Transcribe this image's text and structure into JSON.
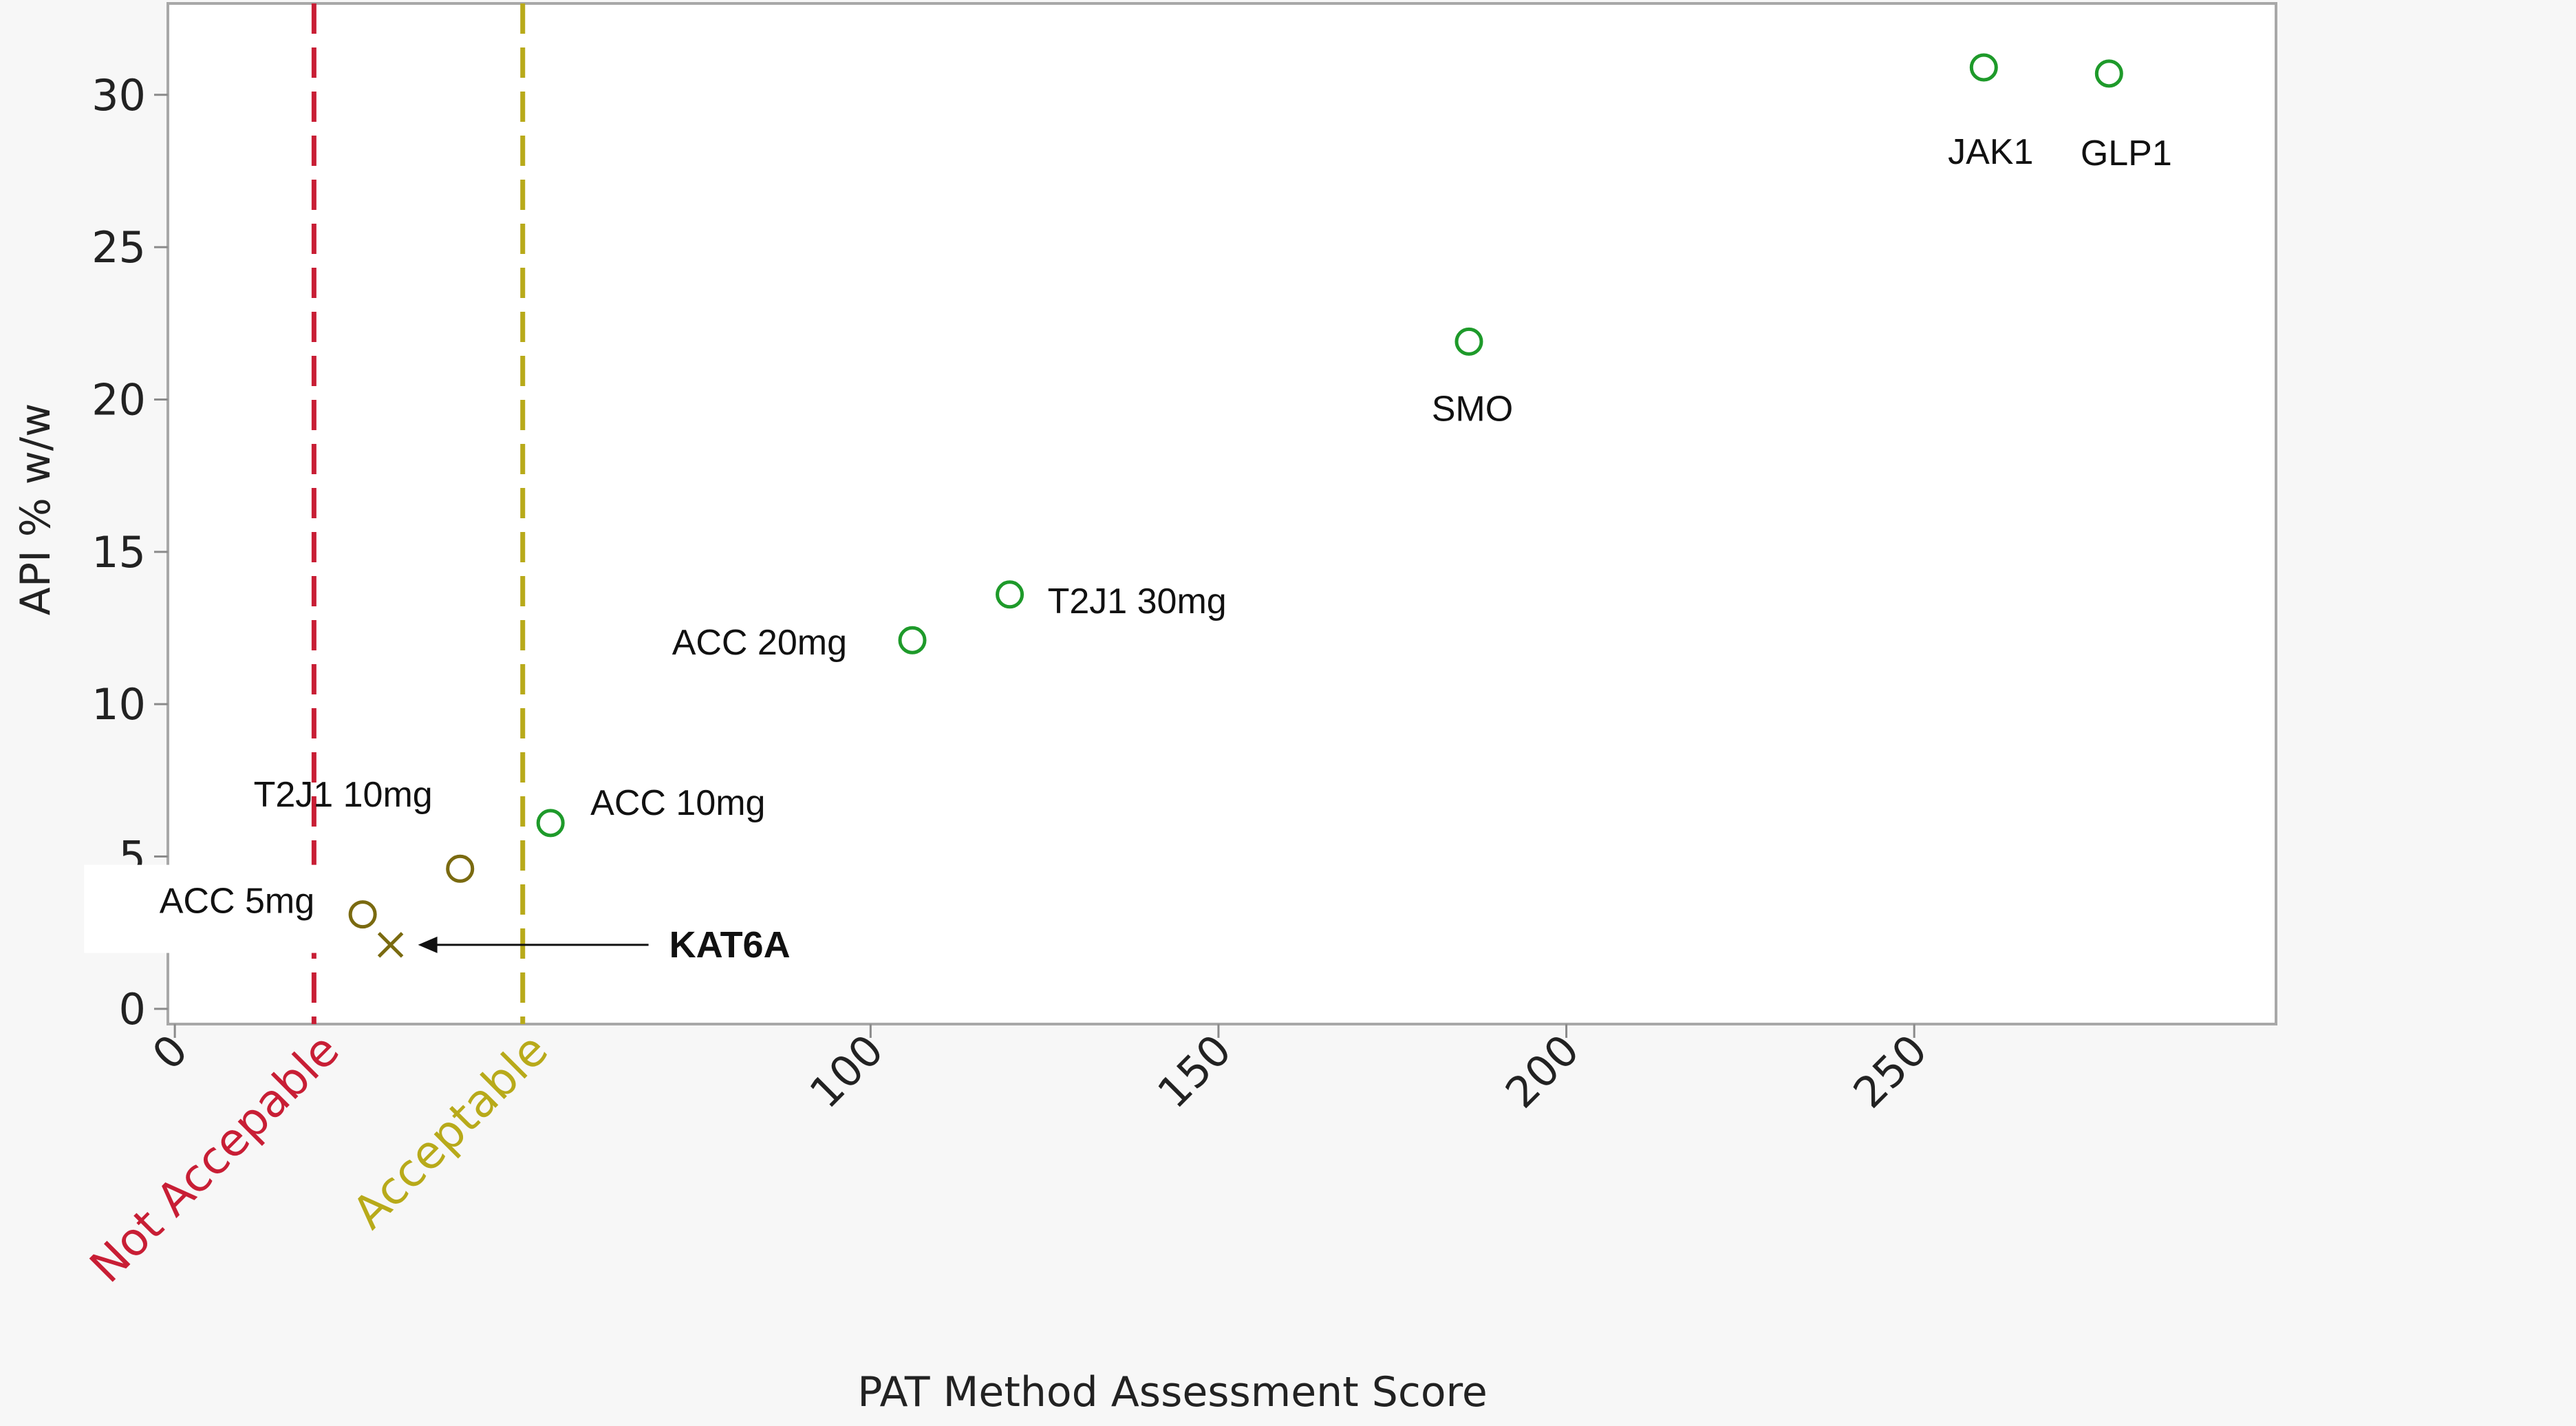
{
  "chart_data": {
    "type": "scatter",
    "title": "",
    "xlabel": "PAT Method Assessment Score",
    "ylabel": "API % w/w",
    "xlim": [
      -1,
      302
    ],
    "ylim": [
      -0.5,
      33
    ],
    "x_ticks": [
      "0",
      "100",
      "150",
      "200",
      "250"
    ],
    "x_tick_values": [
      0,
      100,
      150,
      200,
      250
    ],
    "y_ticks": [
      "0",
      "5",
      "10",
      "15",
      "20",
      "25",
      "30"
    ],
    "y_tick_values": [
      0,
      5,
      10,
      15,
      20,
      25,
      30
    ],
    "points": [
      {
        "label": "ACC 5mg",
        "x": 27,
        "y": 3.1,
        "marker": "circle",
        "color": "#7a6a10"
      },
      {
        "label": "T2J1 10mg",
        "x": 41,
        "y": 4.6,
        "marker": "circle",
        "color": "#7a6a10"
      },
      {
        "label": "ACC 10mg",
        "x": 54,
        "y": 6.1,
        "marker": "circle",
        "color": "#1e9a2a"
      },
      {
        "label": "ACC 20mg",
        "x": 106,
        "y": 12.1,
        "marker": "circle",
        "color": "#1e9a2a"
      },
      {
        "label": "T2J1 30mg",
        "x": 120,
        "y": 13.6,
        "marker": "circle",
        "color": "#1e9a2a"
      },
      {
        "label": "SMO",
        "x": 186,
        "y": 21.9,
        "marker": "circle",
        "color": "#1e9a2a"
      },
      {
        "label": "JAK1",
        "x": 260,
        "y": 30.9,
        "marker": "circle",
        "color": "#1e9a2a"
      },
      {
        "label": "GLP1",
        "x": 278,
        "y": 30.7,
        "marker": "circle",
        "color": "#1e9a2a"
      },
      {
        "label": "KAT6A",
        "x": 31,
        "y": 2.1,
        "marker": "x",
        "color": "#7a6a10"
      }
    ],
    "reference_lines": [
      {
        "x": 20,
        "label": "Not Accepable",
        "color": "#c81e35"
      },
      {
        "x": 50,
        "label": "Acceptable",
        "color": "#b8aa1a"
      }
    ],
    "grid": false,
    "legend": "none"
  }
}
